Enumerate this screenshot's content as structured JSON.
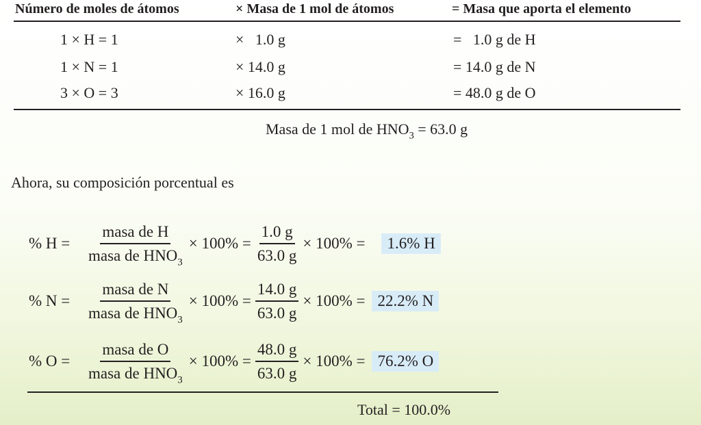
{
  "table": {
    "headers": [
      "Número de moles de átomos",
      "× Masa de 1 mol de átomos",
      "= Masa que aporta el elemento"
    ],
    "rows": [
      {
        "moles": "1 × H = 1",
        "mass": "×   1.0 g",
        "contrib": "=   1.0 g de H"
      },
      {
        "moles": "1 × N = 1",
        "mass": "× 14.0 g",
        "contrib": "= 14.0 g de N"
      },
      {
        "moles": "3 × O = 3",
        "mass": "× 16.0 g",
        "contrib": "= 48.0 g de O"
      }
    ],
    "total_prefix": "Masa de 1 mol de HNO",
    "total_sub": "3",
    "total_suffix": " = 63.0 g"
  },
  "intro": "Ahora, su composición porcentual es",
  "equations": [
    {
      "lhs": "% H =",
      "num1": "masa de H",
      "den1": "masa de HNO",
      "den1_sub": "3",
      "times1": "× 100% =",
      "num2": "1.0 g",
      "den2": "63.0 g",
      "times2": "× 100% =",
      "result": "1.6% H"
    },
    {
      "lhs": "% N =",
      "num1": "masa de N",
      "den1": "masa de HNO",
      "den1_sub": "3",
      "times1": "× 100% =",
      "num2": "14.0 g",
      "den2": "63.0 g",
      "times2": "× 100% =",
      "result": "22.2% N"
    },
    {
      "lhs": "% O =",
      "num1": "masa de O",
      "den1": "masa de HNO",
      "den1_sub": "3",
      "times1": "× 100% =",
      "num2": "48.0 g",
      "den2": "63.0 g",
      "times2": "× 100% =",
      "result": "76.2% O"
    }
  ],
  "total": "Total = 100.0%"
}
